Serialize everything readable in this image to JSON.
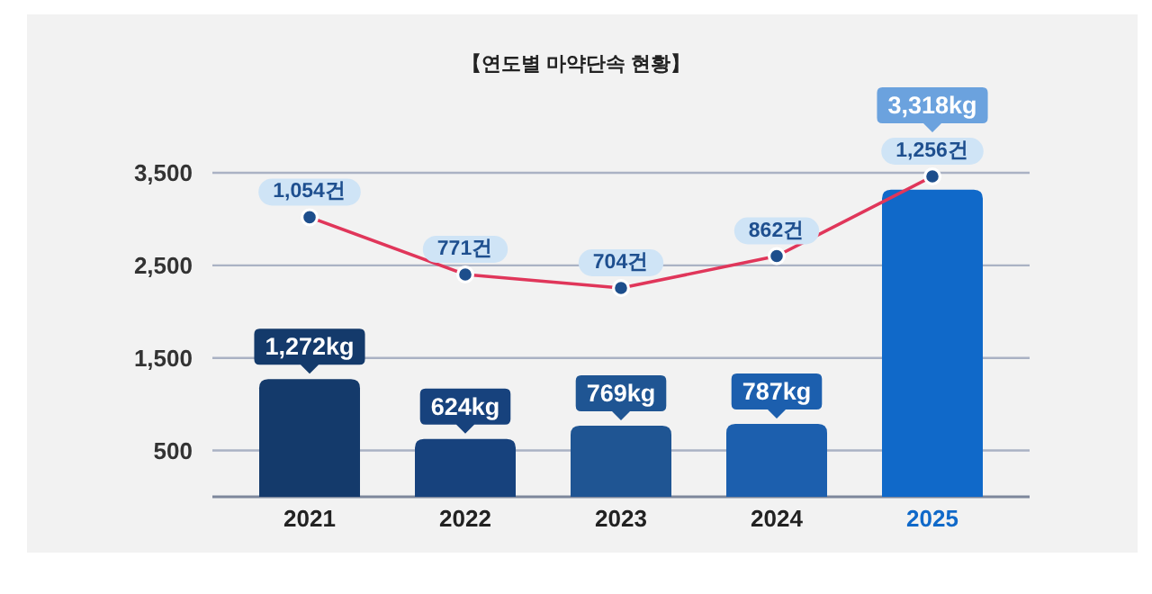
{
  "chart_data": {
    "type": "bar",
    "title": "【연도별 마약단속 현황】",
    "categories": [
      "2021",
      "2022",
      "2023",
      "2024",
      "2025"
    ],
    "ylim": [
      0,
      3500
    ],
    "yticks": [
      500,
      {
        "value": 1500,
        "label": "1,500"
      },
      {
        "value": 2500,
        "label": "2,500"
      },
      {
        "value": 3500,
        "label": "3,500"
      }
    ],
    "grid": "y",
    "series": [
      {
        "colors": [
          "#143a6b",
          "#17427d",
          "#1f5593",
          "#1c5fae",
          "#1069c9"
        ],
        "values": [
          1272,
          624,
          769,
          787,
          3318
        ],
        "value_labels": [
          "1,272kg",
          "624kg",
          "769kg",
          "787kg",
          "3,318kg"
        ]
      },
      {
        "type": "line",
        "axis": "y2",
        "color": "#e0365a",
        "marker": "circle",
        "values": [
          1054,
          771,
          704,
          862,
          1256
        ],
        "value_labels": [
          "1,054건",
          "771건",
          "704건",
          "862건",
          "1,256건"
        ]
      }
    ]
  }
}
